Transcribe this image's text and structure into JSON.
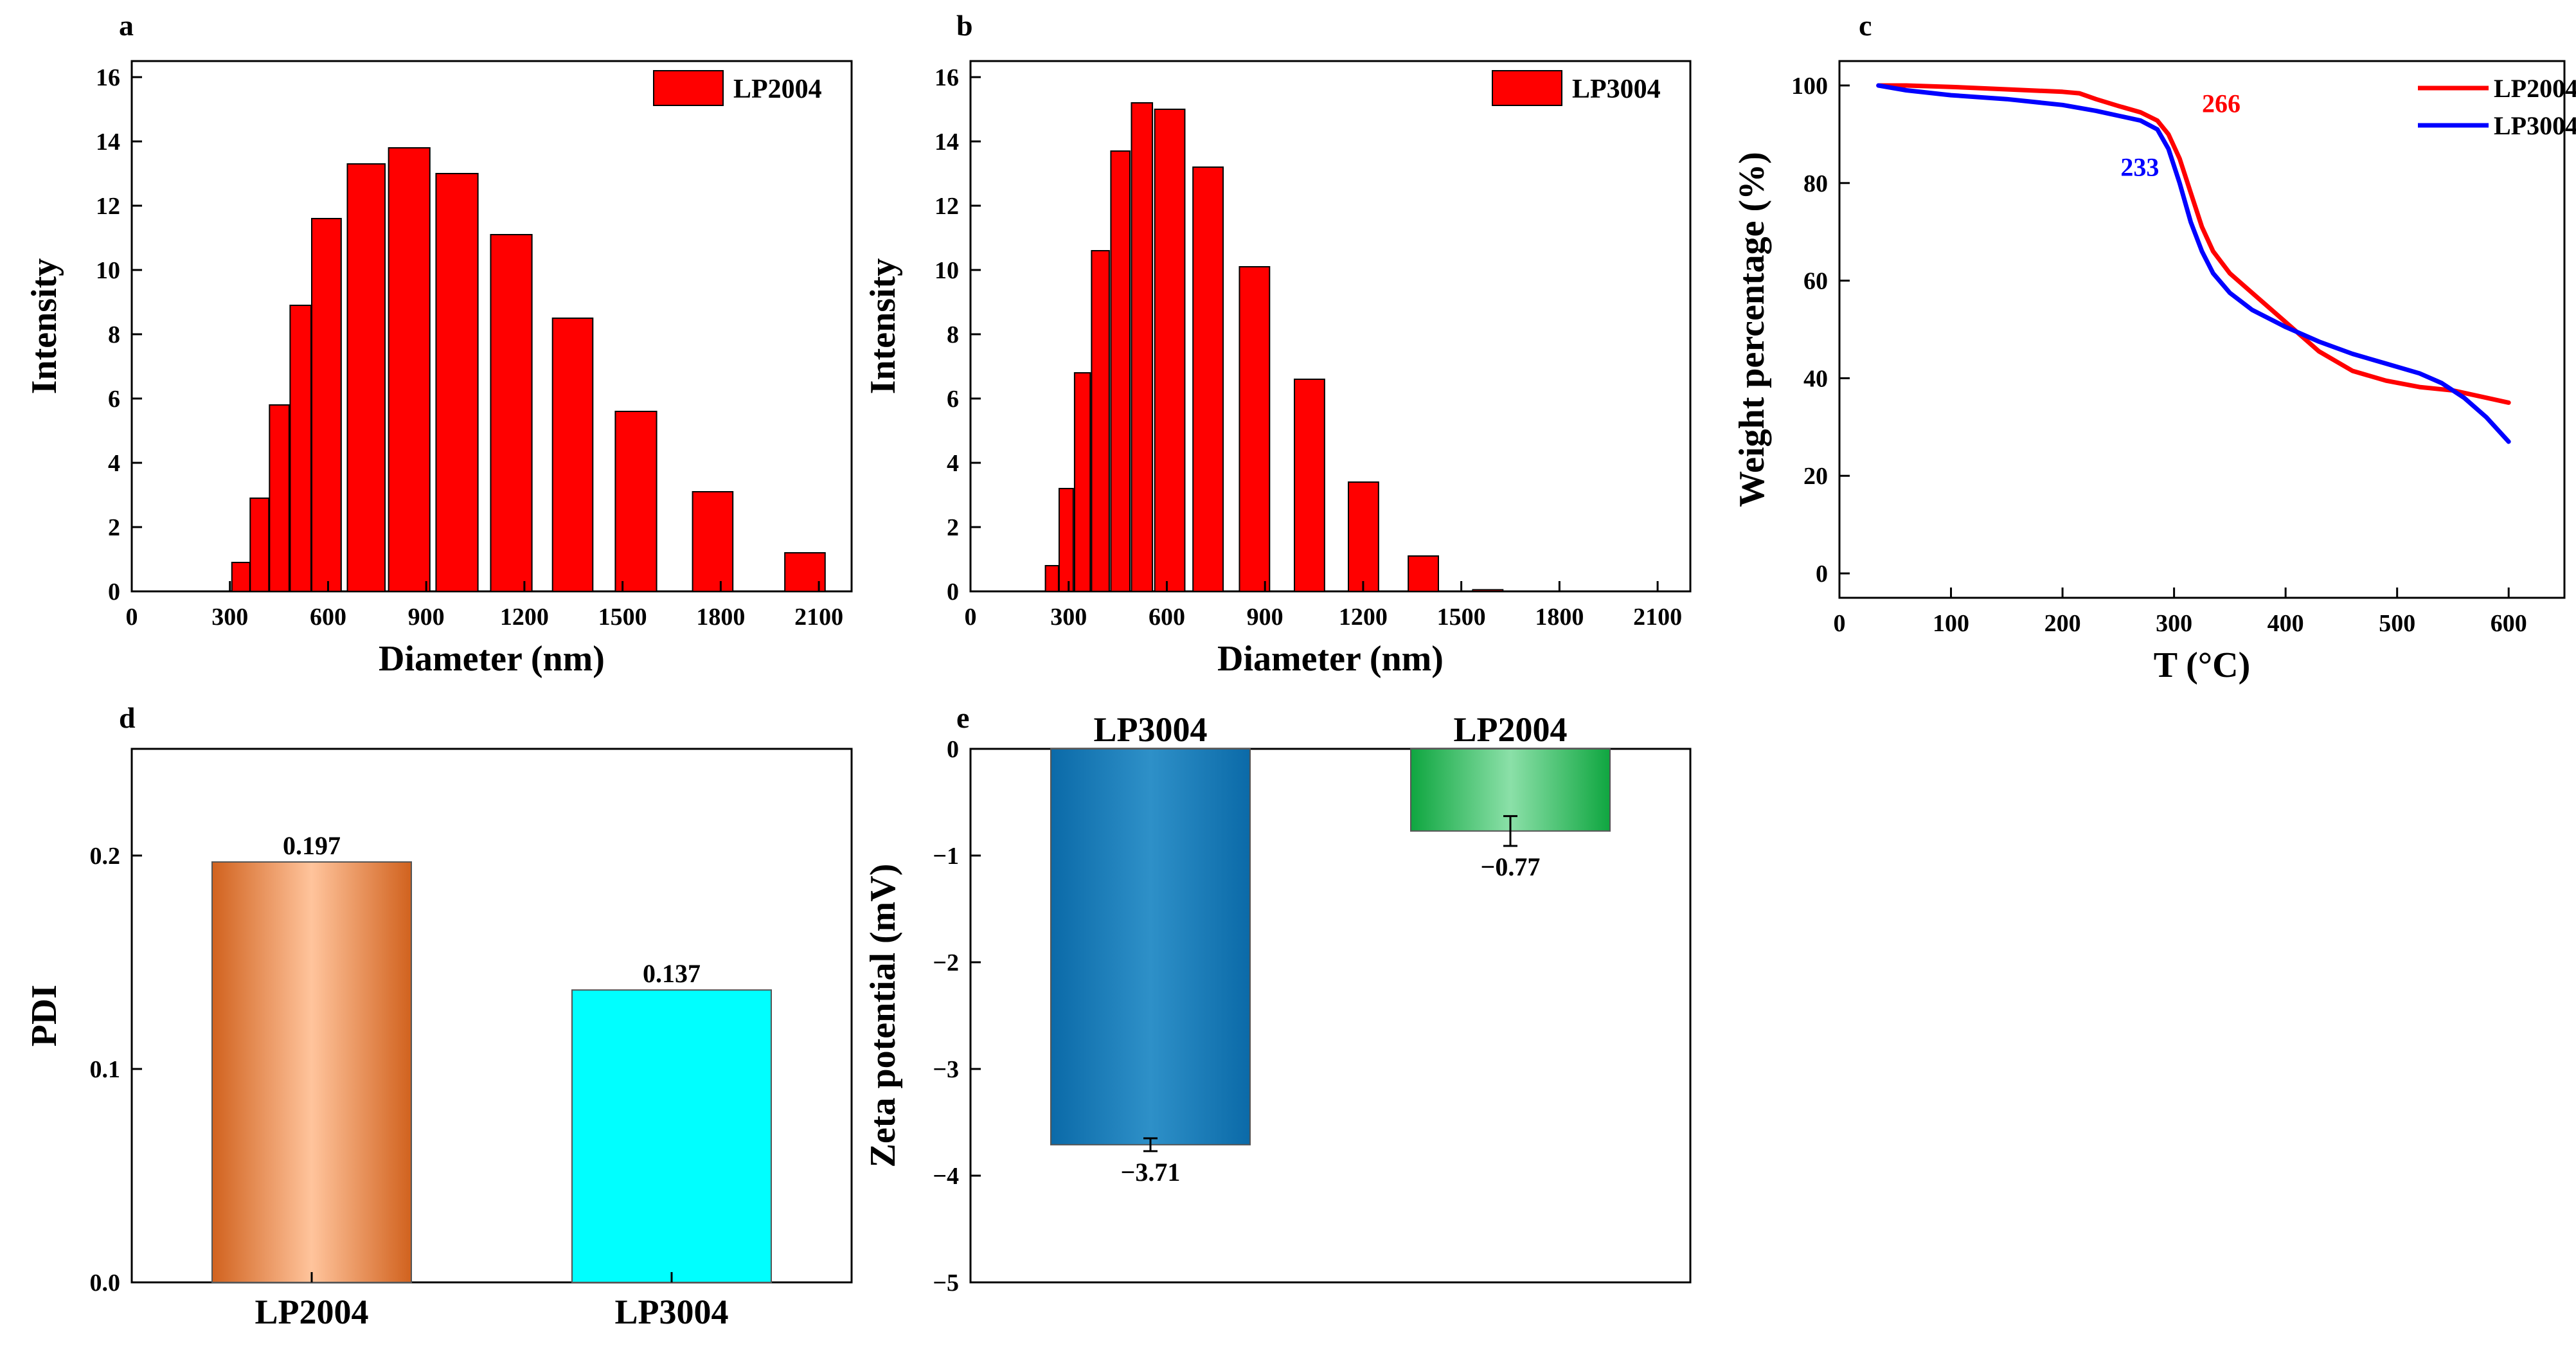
{
  "colors": {
    "red": "#ff0000",
    "blue": "#0000ff",
    "orange": "#f1a070",
    "cyan": "#00ffff",
    "blue_bar": "#1f82be",
    "green_bar": "#38c468"
  },
  "chart_data": [
    {
      "id": "a",
      "panel_label": "a",
      "type": "bar",
      "xlabel": "Diameter (nm)",
      "ylabel": "Intensity",
      "xlim": [
        0,
        2200
      ],
      "ylim": [
        0,
        16.5
      ],
      "xticks": [
        0,
        300,
        600,
        900,
        1200,
        1500,
        1800,
        2100
      ],
      "yticks": [
        0,
        2,
        4,
        6,
        8,
        10,
        12,
        14,
        16
      ],
      "legend": "LP2004",
      "bars": [
        {
          "x": 306,
          "w": 55,
          "v": 0.9
        },
        {
          "x": 362,
          "w": 57,
          "v": 2.9
        },
        {
          "x": 421,
          "w": 60,
          "v": 5.8
        },
        {
          "x": 484,
          "w": 64,
          "v": 8.9
        },
        {
          "x": 550,
          "w": 90,
          "v": 11.6
        },
        {
          "x": 659,
          "w": 115,
          "v": 13.3
        },
        {
          "x": 785,
          "w": 126,
          "v": 13.8
        },
        {
          "x": 930,
          "w": 128,
          "v": 13.0
        },
        {
          "x": 1097,
          "w": 126,
          "v": 11.1
        },
        {
          "x": 1286,
          "w": 123,
          "v": 8.5
        },
        {
          "x": 1478,
          "w": 126,
          "v": 5.6
        },
        {
          "x": 1714,
          "w": 123,
          "v": 3.1
        },
        {
          "x": 1996,
          "w": 123,
          "v": 1.2
        }
      ]
    },
    {
      "id": "b",
      "panel_label": "b",
      "type": "bar",
      "xlabel": "Diameter (nm)",
      "ylabel": "Intensity",
      "xlim": [
        0,
        2200
      ],
      "ylim": [
        0,
        16.5
      ],
      "xticks": [
        0,
        300,
        600,
        900,
        1200,
        1500,
        1800,
        2100
      ],
      "yticks": [
        0,
        2,
        4,
        6,
        8,
        10,
        12,
        14,
        16
      ],
      "legend": "LP3004",
      "bars": [
        {
          "x": 229,
          "w": 40,
          "v": 0.8
        },
        {
          "x": 271,
          "w": 43,
          "v": 3.2
        },
        {
          "x": 318,
          "w": 48,
          "v": 6.8
        },
        {
          "x": 370,
          "w": 54,
          "v": 10.6
        },
        {
          "x": 429,
          "w": 58,
          "v": 13.7
        },
        {
          "x": 492,
          "w": 64,
          "v": 15.2
        },
        {
          "x": 563,
          "w": 92,
          "v": 15.0
        },
        {
          "x": 680,
          "w": 92,
          "v": 13.2
        },
        {
          "x": 822,
          "w": 92,
          "v": 10.1
        },
        {
          "x": 990,
          "w": 92,
          "v": 6.6
        },
        {
          "x": 1155,
          "w": 92,
          "v": 3.4
        },
        {
          "x": 1338,
          "w": 92,
          "v": 1.1
        },
        {
          "x": 1535,
          "w": 92,
          "v": 0.05
        }
      ]
    },
    {
      "id": "c",
      "panel_label": "c",
      "type": "line",
      "xlabel": "T (°C)",
      "ylabel": "Weight percentage (%)",
      "xlim": [
        0,
        650
      ],
      "ylim": [
        -5,
        105
      ],
      "xticks": [
        0,
        100,
        200,
        300,
        400,
        500,
        600
      ],
      "yticks": [
        0,
        20,
        40,
        60,
        80,
        100
      ],
      "series": [
        {
          "name": "LP2004",
          "color": "#ff0000",
          "x": [
            35,
            60,
            100,
            150,
            200,
            215,
            230,
            250,
            270,
            285,
            295,
            305,
            315,
            325,
            335,
            350,
            370,
            400,
            430,
            460,
            490,
            520,
            550,
            580,
            600
          ],
          "y": [
            100,
            100,
            99.7,
            99.2,
            98.7,
            98.4,
            97.2,
            95.8,
            94.5,
            92.8,
            90,
            85,
            78,
            71,
            66,
            61.5,
            57.5,
            51.5,
            45.5,
            41.5,
            39.5,
            38.2,
            37.5,
            36,
            35
          ]
        },
        {
          "name": "LP3004",
          "color": "#0000ff",
          "x": [
            35,
            60,
            100,
            150,
            200,
            230,
            250,
            270,
            285,
            295,
            305,
            315,
            325,
            335,
            350,
            370,
            400,
            430,
            460,
            490,
            520,
            540,
            560,
            580,
            600
          ],
          "y": [
            100,
            99,
            98,
            97.2,
            96,
            94.8,
            93.8,
            92.8,
            91,
            87,
            80,
            72,
            66,
            61.5,
            57.5,
            54,
            50.5,
            47.5,
            45,
            43,
            41,
            39,
            36,
            32,
            27
          ]
        }
      ],
      "annotations": [
        {
          "text": "266",
          "x": 325,
          "y": 94.5,
          "color": "#ff0000"
        },
        {
          "text": "233",
          "x": 252,
          "y": 81.5,
          "color": "#0000ff"
        }
      ]
    },
    {
      "id": "d",
      "panel_label": "d",
      "type": "bar",
      "xlabel": "",
      "ylabel": "PDI",
      "ylim": [
        0,
        0.25
      ],
      "yticks": [
        0.0,
        0.1,
        0.2
      ],
      "categories": [
        "LP2004",
        "LP3004"
      ],
      "values": [
        0.197,
        0.137
      ],
      "value_labels": [
        "0.197",
        "0.137"
      ]
    },
    {
      "id": "e",
      "panel_label": "e",
      "type": "bar",
      "xlabel": "",
      "ylabel": "Zeta potential (mV)",
      "ylim": [
        -5,
        0
      ],
      "yticks": [
        0,
        -1,
        -2,
        -3,
        -4,
        -5
      ],
      "ytick_labels": [
        "0",
        "−1",
        "−2",
        "−3",
        "−4",
        "−5"
      ],
      "categories": [
        "LP3004",
        "LP2004"
      ],
      "values": [
        -3.71,
        -0.77
      ],
      "errors": [
        0.06,
        0.14
      ],
      "value_labels": [
        "−3.71",
        "−0.77"
      ]
    }
  ]
}
